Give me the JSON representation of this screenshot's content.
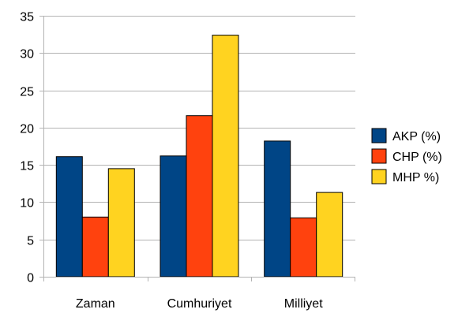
{
  "chart_data": {
    "type": "bar",
    "title": "",
    "xlabel": "",
    "ylabel": "",
    "categories": [
      "Zaman",
      "Cumhuriyet",
      "Milliyet"
    ],
    "series": [
      {
        "name": "AKP (%)",
        "values": [
          16.1,
          16.2,
          18.2
        ],
        "color": "#004586"
      },
      {
        "name": "CHP (%)",
        "values": [
          8.0,
          21.6,
          7.9
        ],
        "color": "#ff420e"
      },
      {
        "name": "MHP %)",
        "values": [
          14.5,
          32.4,
          11.3
        ],
        "color": "#ffd320"
      }
    ],
    "ylim": [
      0,
      35
    ],
    "yticks": [
      0,
      5,
      10,
      15,
      20,
      25,
      30,
      35
    ],
    "grid": true,
    "legend_position": "right"
  }
}
